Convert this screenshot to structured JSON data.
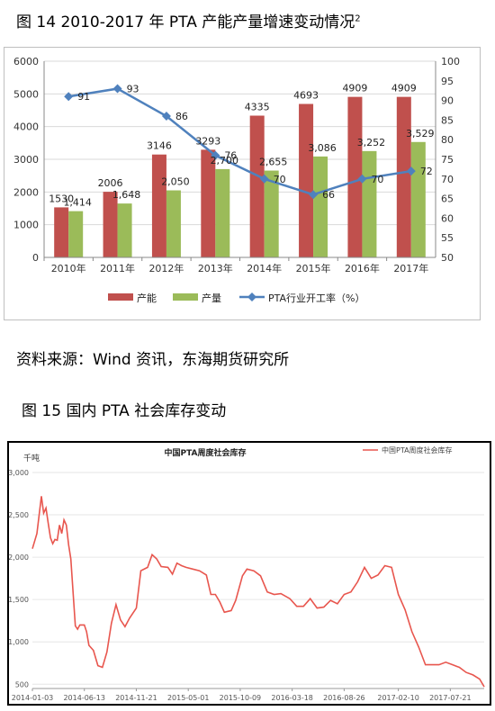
{
  "figure14": {
    "title": "图 14    2010-2017 年 PTA 产能产量增速变动情况",
    "footnote_mark": "2"
  },
  "source": "资料来源：Wind 资讯，东海期货研究所",
  "figure15": {
    "title": "图 15  国内 PTA 社会库存变动"
  },
  "chart_data": [
    {
      "type": "bar",
      "categories": [
        "2010年",
        "2011年",
        "2012年",
        "2013年",
        "2014年",
        "2015年",
        "2016年",
        "2017年"
      ],
      "series": [
        {
          "name": "产能",
          "type": "bar",
          "color": "#c0504d",
          "values": [
            1530,
            2006,
            3146,
            3293,
            4335,
            4693,
            4909,
            4909
          ],
          "labels": [
            "1530",
            "2006",
            "3146",
            "3293",
            "4335",
            "4693",
            "4909",
            "4909"
          ]
        },
        {
          "name": "产量",
          "type": "bar",
          "color": "#9bbb59",
          "values": [
            1414,
            1648,
            2050,
            2700,
            2655,
            3086,
            3252,
            3529
          ],
          "labels": [
            "1,414",
            "1,648",
            "2,050",
            "2,700",
            "2,655",
            "3,086",
            "3,252",
            "3,529"
          ]
        },
        {
          "name": "PTA行业开工率（%）",
          "type": "line",
          "axis": "right",
          "color": "#4f81bd",
          "values": [
            91,
            93,
            86,
            76,
            70,
            66,
            70,
            72
          ],
          "labels": [
            "91",
            "93",
            "86",
            "76",
            "70",
            "66",
            "70",
            "72"
          ]
        }
      ],
      "ylim": [
        0,
        6000
      ],
      "yticks": [
        "0",
        "1000",
        "2000",
        "3000",
        "4000",
        "5000",
        "6000"
      ],
      "y2lim": [
        50,
        100
      ],
      "y2ticks": [
        "50",
        "55",
        "60",
        "65",
        "70",
        "75",
        "80",
        "85",
        "90",
        "95",
        "100"
      ],
      "legend_position": "bottom",
      "grid": true
    },
    {
      "type": "line",
      "title": "中国PTA周度社会库存",
      "ylabel": "千吨",
      "series_name": "中国PTA周度社会库存",
      "color": "#e8564e",
      "ylim": [
        450,
        3000
      ],
      "yticks": [
        "3,000",
        "2,500",
        "2,000",
        "1,500",
        "1,000",
        "500"
      ],
      "x_start": "2014-01-03",
      "x_end": "2017-11-03",
      "xticks": [
        "2014-01-03",
        "2014-06-13",
        "2014-11-21",
        "2015-05-01",
        "2015-10-09",
        "2016-03-18",
        "2016-08-26",
        "2017-02-10",
        "2017-07-21"
      ],
      "x": [
        "2014-01-03",
        "2014-01-17",
        "2014-01-31",
        "2014-02-07",
        "2014-02-14",
        "2014-02-21",
        "2014-02-28",
        "2014-03-07",
        "2014-03-14",
        "2014-03-21",
        "2014-03-28",
        "2014-04-04",
        "2014-04-11",
        "2014-04-18",
        "2014-04-25",
        "2014-05-02",
        "2014-05-16",
        "2014-05-23",
        "2014-05-30",
        "2014-06-06",
        "2014-06-13",
        "2014-06-20",
        "2014-06-27",
        "2014-07-11",
        "2014-07-25",
        "2014-08-08",
        "2014-08-22",
        "2014-09-05",
        "2014-09-19",
        "2014-10-03",
        "2014-10-17",
        "2014-10-31",
        "2014-11-21",
        "2014-12-05",
        "2014-12-26",
        "2015-01-09",
        "2015-01-23",
        "2015-02-06",
        "2015-02-27",
        "2015-03-13",
        "2015-03-27",
        "2015-04-10",
        "2015-04-24",
        "2015-05-15",
        "2015-06-05",
        "2015-06-26",
        "2015-07-10",
        "2015-07-24",
        "2015-08-07",
        "2015-08-21",
        "2015-09-11",
        "2015-09-25",
        "2015-10-16",
        "2015-10-30",
        "2015-11-20",
        "2015-12-11",
        "2016-01-01",
        "2016-01-22",
        "2016-02-12",
        "2016-03-11",
        "2016-04-01",
        "2016-04-22",
        "2016-05-13",
        "2016-06-03",
        "2016-06-24",
        "2016-07-15",
        "2016-08-05",
        "2016-08-26",
        "2016-09-16",
        "2016-10-07",
        "2016-10-28",
        "2016-11-18",
        "2016-12-09",
        "2016-12-30",
        "2017-01-20",
        "2017-02-10",
        "2017-03-03",
        "2017-03-24",
        "2017-04-14",
        "2017-05-05",
        "2017-05-26",
        "2017-06-16",
        "2017-07-07",
        "2017-07-28",
        "2017-08-18",
        "2017-09-08",
        "2017-09-29",
        "2017-10-20",
        "2017-11-03"
      ],
      "y": [
        2100,
        2280,
        2720,
        2520,
        2580,
        2400,
        2230,
        2160,
        2210,
        2200,
        2380,
        2280,
        2440,
        2380,
        2150,
        1980,
        1190,
        1150,
        1200,
        1200,
        1200,
        1120,
        960,
        900,
        720,
        700,
        880,
        1220,
        1440,
        1260,
        1180,
        1280,
        1400,
        1840,
        1880,
        2030,
        1980,
        1890,
        1880,
        1800,
        1930,
        1900,
        1880,
        1860,
        1840,
        1790,
        1560,
        1560,
        1470,
        1350,
        1370,
        1490,
        1780,
        1860,
        1840,
        1780,
        1590,
        1560,
        1570,
        1510,
        1420,
        1420,
        1510,
        1400,
        1410,
        1490,
        1450,
        1560,
        1590,
        1710,
        1880,
        1750,
        1790,
        1900,
        1880,
        1560,
        1380,
        1120,
        940,
        730,
        730,
        730,
        760,
        730,
        700,
        640,
        610,
        560,
        470
      ],
      "legend_position": "top-right",
      "grid": true
    }
  ]
}
